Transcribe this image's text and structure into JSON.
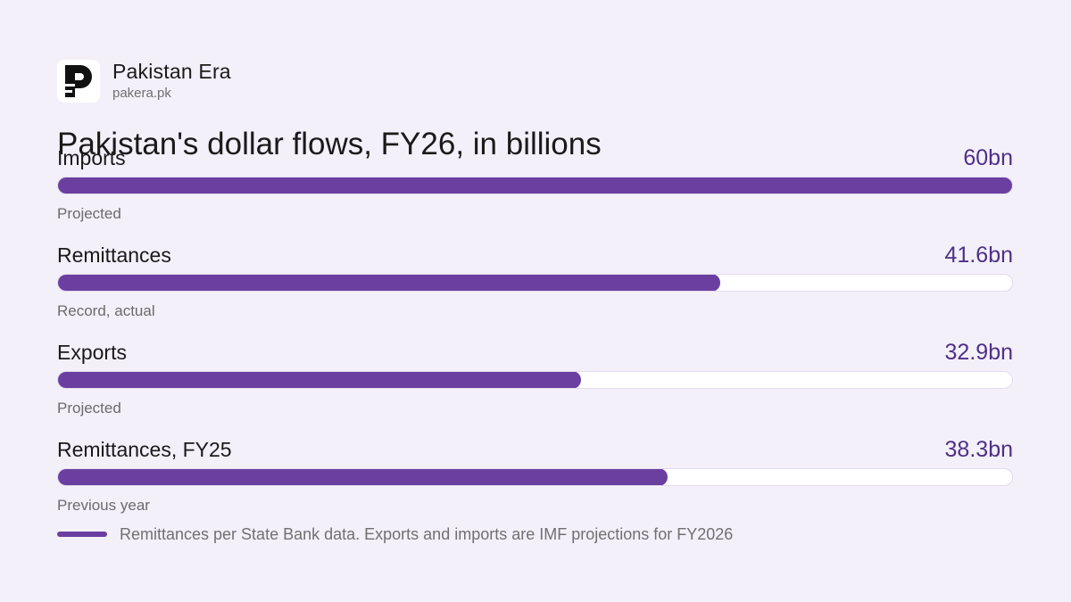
{
  "brand": {
    "name": "Pakistan Era",
    "domain": "pakera.pk",
    "logo_icon": "pakistan-era-logo-icon"
  },
  "colors": {
    "background": "#f3f0fa",
    "bar": "#6b3fa0",
    "value": "#4f2f87",
    "track": "#ffffff"
  },
  "chart_data": {
    "type": "bar",
    "orientation": "horizontal",
    "title": "Pakistan's dollar flows, FY26, in billions",
    "categories": [
      "Imports",
      "Remittances",
      "Exports",
      "Remittances, FY25"
    ],
    "values": [
      60,
      41.6,
      32.9,
      38.3
    ],
    "value_labels": [
      "60bn",
      "41.6bn",
      "32.9bn",
      "38.3bn"
    ],
    "notes": [
      "Projected",
      "Record, actual",
      "Projected",
      "Previous year"
    ],
    "xlim": [
      0,
      60
    ],
    "grid": false,
    "legend": {
      "placement": "bottom-left",
      "text": "Remittances per State Bank data. Exports and imports are IMF projections for FY2026"
    }
  }
}
